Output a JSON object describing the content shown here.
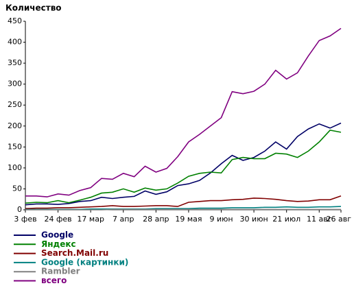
{
  "chart_data": {
    "type": "line",
    "title": "Количество",
    "categories": [
      "3 фев",
      null,
      null,
      "24 фев",
      null,
      null,
      "17 мар",
      null,
      null,
      "7 апр",
      null,
      null,
      "28 апр",
      null,
      null,
      "19 мая",
      null,
      null,
      "9 июн",
      null,
      null,
      "30 июн",
      null,
      null,
      "21 июл",
      null,
      null,
      "11 авг",
      null,
      "26 авг"
    ],
    "series": [
      {
        "name": "Google",
        "color": "#000066",
        "values": [
          12,
          14,
          14,
          13,
          15,
          20,
          22,
          30,
          27,
          30,
          32,
          45,
          37,
          43,
          58,
          62,
          70,
          88,
          110,
          130,
          118,
          125,
          140,
          162,
          145,
          175,
          193,
          205,
          195,
          207
        ]
      },
      {
        "name": "Яндекс",
        "color": "#008000",
        "values": [
          16,
          18,
          17,
          22,
          17,
          23,
          30,
          40,
          42,
          50,
          42,
          52,
          47,
          50,
          64,
          80,
          87,
          90,
          88,
          120,
          125,
          122,
          122,
          135,
          133,
          125,
          140,
          162,
          190,
          185
        ]
      },
      {
        "name": "Search.Mail.ru",
        "color": "#800000",
        "values": [
          3,
          4,
          4,
          5,
          5,
          6,
          7,
          8,
          10,
          8,
          8,
          9,
          10,
          10,
          8,
          18,
          20,
          22,
          22,
          24,
          25,
          28,
          27,
          25,
          22,
          20,
          21,
          24,
          24,
          33
        ]
      },
      {
        "name": "Google (картинки)",
        "color": "#008080",
        "values": [
          1,
          1,
          1,
          1,
          1,
          1,
          2,
          2,
          2,
          2,
          2,
          2,
          3,
          3,
          3,
          3,
          4,
          4,
          4,
          5,
          5,
          5,
          6,
          6,
          7,
          6,
          6,
          7,
          7,
          8
        ]
      },
      {
        "name": "Rambler",
        "color": "#808080",
        "values": [
          0,
          0,
          0,
          0,
          0,
          0,
          0,
          0,
          1,
          1,
          1,
          1,
          1,
          1,
          1,
          1,
          1,
          1,
          1,
          1,
          1,
          1,
          1,
          1,
          1,
          1,
          1,
          1,
          1,
          1
        ]
      },
      {
        "name": "всего",
        "color": "#800080",
        "values": [
          33,
          33,
          31,
          38,
          35,
          46,
          53,
          75,
          73,
          87,
          79,
          104,
          90,
          99,
          127,
          162,
          180,
          200,
          220,
          282,
          277,
          283,
          300,
          333,
          312,
          327,
          367,
          404,
          415,
          433
        ]
      }
    ],
    "ylim": [
      0,
      450
    ],
    "yticks": [
      0,
      50,
      100,
      150,
      200,
      250,
      300,
      350,
      400,
      450
    ],
    "grid": false
  }
}
